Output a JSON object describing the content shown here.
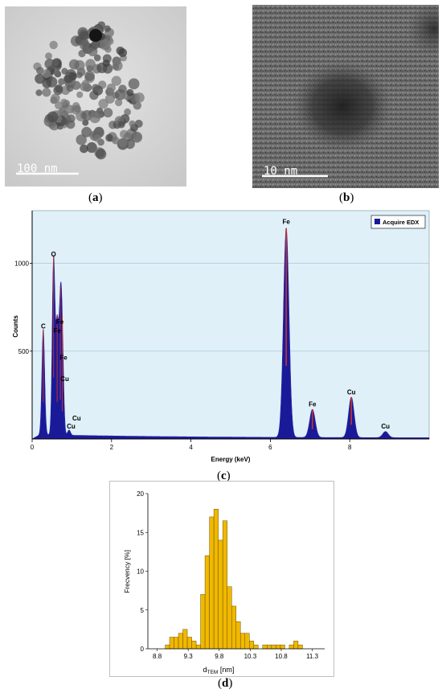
{
  "panels": {
    "a": {
      "letter": "a",
      "scale_bar": "100 nm"
    },
    "b": {
      "letter": "b",
      "scale_bar": "10 nm"
    },
    "c": {
      "letter": "c"
    },
    "d": {
      "letter": "d"
    }
  },
  "colors": {
    "edx_fill": "#1a1a99",
    "edx_peak_tip": "#c03030",
    "edx_background": "#dff0f8",
    "hist_fill": "#f0b800",
    "hist_edge": "#6b5200"
  },
  "chart_data": [
    {
      "type": "area",
      "id": "edx",
      "title": "",
      "xlabel": "Energy (keV)",
      "ylabel": "Counts",
      "xlim": [
        0,
        10
      ],
      "ylim": [
        0,
        1300
      ],
      "xticks": [
        0,
        2,
        4,
        6,
        8
      ],
      "yticks": [
        500,
        1000
      ],
      "grid": "horizontal",
      "legend": {
        "position": "top-right",
        "entries": [
          "Acquire EDX"
        ]
      },
      "series": [
        {
          "name": "Acquire EDX",
          "baseline": 20,
          "peaks": [
            {
              "energy": 0.28,
              "counts": 600,
              "label": "C"
            },
            {
              "energy": 0.54,
              "counts": 1000,
              "label": "O"
            },
            {
              "energy": 0.63,
              "counts": 600,
              "label": "Fe"
            },
            {
              "energy": 0.71,
              "counts": 640,
              "label": "Fe"
            },
            {
              "energy": 0.76,
              "counts": 450,
              "label": "Fe"
            },
            {
              "energy": 0.93,
              "counts": 30,
              "label": "Cu"
            },
            {
              "energy": 6.4,
              "counts": 1190,
              "label": "Fe"
            },
            {
              "energy": 7.06,
              "counts": 160,
              "label": "Fe"
            },
            {
              "energy": 8.04,
              "counts": 230,
              "label": "Cu"
            },
            {
              "energy": 8.9,
              "counts": 35,
              "label": "Cu"
            }
          ]
        }
      ],
      "annotations": [
        {
          "text": "C",
          "x": 0.28,
          "y": 630
        },
        {
          "text": "O",
          "x": 0.54,
          "y": 1040
        },
        {
          "text": "Fe",
          "x": 0.7,
          "y": 655
        },
        {
          "text": "Fe",
          "x": 0.63,
          "y": 605
        },
        {
          "text": "Fe",
          "x": 0.79,
          "y": 450
        },
        {
          "text": "Cu",
          "x": 0.82,
          "y": 330
        },
        {
          "text": "Cu",
          "x": 1.12,
          "y": 105
        },
        {
          "text": "Cu",
          "x": 0.98,
          "y": 60
        },
        {
          "text": "Fe",
          "x": 6.4,
          "y": 1225
        },
        {
          "text": "Fe",
          "x": 7.06,
          "y": 185
        },
        {
          "text": "Cu",
          "x": 8.04,
          "y": 255
        },
        {
          "text": "Cu",
          "x": 8.9,
          "y": 60
        }
      ]
    },
    {
      "type": "bar",
      "id": "size-histogram",
      "title": "",
      "xlabel": "d",
      "xlabel_sub": "TEM",
      "xlabel_unit": " [nm]",
      "ylabel": "Frecvency [%]",
      "xlim": [
        8.65,
        11.5
      ],
      "ylim": [
        0,
        20
      ],
      "xticks": [
        "8.8",
        "9.3",
        "9.8",
        "10.3",
        "10.8",
        "11.3"
      ],
      "yticks": [
        0,
        5,
        10,
        15,
        20
      ],
      "bin_width": 0.0714,
      "bin_starts": [
        8.93,
        9.0,
        9.071,
        9.143,
        9.214,
        9.286,
        9.357,
        9.429,
        9.5,
        9.571,
        9.643,
        9.714,
        9.786,
        9.857,
        9.929,
        10.0,
        10.071,
        10.143,
        10.214,
        10.286,
        10.357,
        10.429,
        10.5,
        10.571,
        10.643,
        10.714,
        10.786,
        10.857,
        10.929,
        11.0,
        11.071,
        11.143,
        11.214,
        11.286
      ],
      "values": [
        0.5,
        1.5,
        1.5,
        2.0,
        2.5,
        1.5,
        1.0,
        0.5,
        7.0,
        12.0,
        17.0,
        18.0,
        14.0,
        16.5,
        8.0,
        5.5,
        3.5,
        2.0,
        2.0,
        1.0,
        0.5,
        0,
        0.5,
        0.5,
        0.5,
        0.5,
        0.5,
        0,
        0.5,
        1.0,
        0.5,
        0,
        0,
        0
      ]
    }
  ]
}
